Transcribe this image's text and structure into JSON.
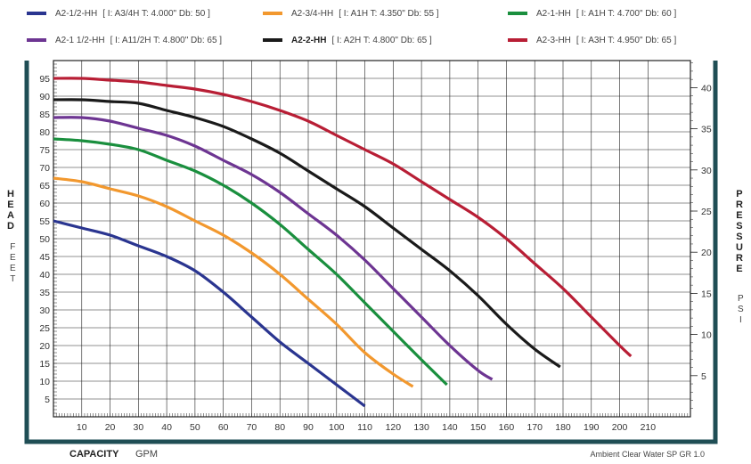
{
  "chart_data": {
    "type": "line",
    "xlabel": "CAPACITY",
    "xunit": "GPM",
    "ylabel_left": "HEAD",
    "ylabel_left_unit": "FEET",
    "ylabel_right": "PRESSURE",
    "ylabel_right_unit": "PSI",
    "xlim": [
      0,
      225
    ],
    "ylim": [
      0,
      100
    ],
    "ylim_right_psi": [
      0,
      43.3
    ],
    "x_ticks": [
      10,
      20,
      30,
      40,
      50,
      60,
      70,
      80,
      90,
      100,
      110,
      120,
      130,
      140,
      150,
      160,
      170,
      180,
      190,
      200,
      210
    ],
    "y_ticks": [
      5,
      10,
      15,
      20,
      25,
      30,
      35,
      40,
      45,
      50,
      55,
      60,
      65,
      70,
      75,
      80,
      85,
      90,
      95
    ],
    "y_ticks_right": [
      5,
      10,
      15,
      20,
      25,
      30,
      35,
      40
    ],
    "grid": true,
    "footnote": "Ambient Clear Water SP GR 1.0",
    "series": [
      {
        "name": "A2-1/2-HH",
        "detail": "[ I: A3/4H  T: 4.000\"   Db:  50 ]",
        "color": "#2a3590",
        "points": [
          [
            0,
            55
          ],
          [
            10,
            53
          ],
          [
            20,
            51
          ],
          [
            30,
            48
          ],
          [
            40,
            45
          ],
          [
            50,
            41
          ],
          [
            60,
            35
          ],
          [
            70,
            28
          ],
          [
            80,
            21
          ],
          [
            90,
            15
          ],
          [
            100,
            9
          ],
          [
            110,
            3
          ]
        ]
      },
      {
        "name": "A2-3/4-HH",
        "detail": "[ I: A1H  T: 4.350\"   Db:  55 ]",
        "color": "#f2982e",
        "points": [
          [
            0,
            67
          ],
          [
            10,
            66
          ],
          [
            20,
            64
          ],
          [
            30,
            62
          ],
          [
            40,
            59
          ],
          [
            50,
            55
          ],
          [
            60,
            51
          ],
          [
            70,
            46
          ],
          [
            80,
            40
          ],
          [
            90,
            33
          ],
          [
            100,
            26
          ],
          [
            110,
            18
          ],
          [
            120,
            12
          ],
          [
            127,
            8.5
          ]
        ]
      },
      {
        "name": "A2-1-HH",
        "detail": "[ I: A1H  T: 4.700\"   Db:  60 ]",
        "color": "#1a8f3e",
        "points": [
          [
            0,
            78
          ],
          [
            10,
            77.5
          ],
          [
            20,
            76.5
          ],
          [
            30,
            75
          ],
          [
            40,
            72
          ],
          [
            50,
            69
          ],
          [
            60,
            65
          ],
          [
            70,
            60
          ],
          [
            80,
            54
          ],
          [
            90,
            47
          ],
          [
            100,
            40
          ],
          [
            110,
            32
          ],
          [
            120,
            24
          ],
          [
            130,
            16
          ],
          [
            139,
            9
          ]
        ]
      },
      {
        "name": "A2-1 1/2-HH",
        "detail": "[ I: A11/2H  T: 4.800\"   Db:  65 ]",
        "color": "#6d3592",
        "points": [
          [
            0,
            84
          ],
          [
            10,
            84
          ],
          [
            20,
            83
          ],
          [
            30,
            81
          ],
          [
            40,
            79
          ],
          [
            50,
            76
          ],
          [
            60,
            72
          ],
          [
            70,
            68
          ],
          [
            80,
            63
          ],
          [
            90,
            57
          ],
          [
            100,
            51
          ],
          [
            110,
            44
          ],
          [
            120,
            36
          ],
          [
            130,
            28
          ],
          [
            140,
            20
          ],
          [
            150,
            13
          ],
          [
            155,
            10.5
          ]
        ]
      },
      {
        "name": "A2-2-HH",
        "detail": "[ I: A2H  T: 4.800\"   Db:  65 ]",
        "color": "#1a1a1a",
        "points": [
          [
            0,
            89
          ],
          [
            10,
            89
          ],
          [
            20,
            88.5
          ],
          [
            30,
            88
          ],
          [
            40,
            86
          ],
          [
            50,
            84
          ],
          [
            60,
            81.5
          ],
          [
            70,
            78
          ],
          [
            80,
            74
          ],
          [
            90,
            69
          ],
          [
            100,
            64
          ],
          [
            110,
            59
          ],
          [
            120,
            53
          ],
          [
            130,
            47
          ],
          [
            140,
            41
          ],
          [
            150,
            34
          ],
          [
            160,
            26
          ],
          [
            170,
            19
          ],
          [
            179,
            14
          ]
        ]
      },
      {
        "name": "A2-3-HH",
        "detail": "[ I: A3H  T: 4.950\"   Db:  65 ]",
        "color": "#b81e35",
        "points": [
          [
            0,
            95
          ],
          [
            10,
            95
          ],
          [
            20,
            94.5
          ],
          [
            30,
            94
          ],
          [
            40,
            93
          ],
          [
            50,
            92
          ],
          [
            60,
            90.5
          ],
          [
            70,
            88.5
          ],
          [
            80,
            86
          ],
          [
            90,
            83
          ],
          [
            100,
            79
          ],
          [
            110,
            75
          ],
          [
            120,
            71
          ],
          [
            130,
            66
          ],
          [
            140,
            61
          ],
          [
            150,
            56
          ],
          [
            160,
            50
          ],
          [
            170,
            43
          ],
          [
            180,
            36
          ],
          [
            190,
            28
          ],
          [
            200,
            20
          ],
          [
            204,
            17
          ]
        ]
      }
    ]
  }
}
